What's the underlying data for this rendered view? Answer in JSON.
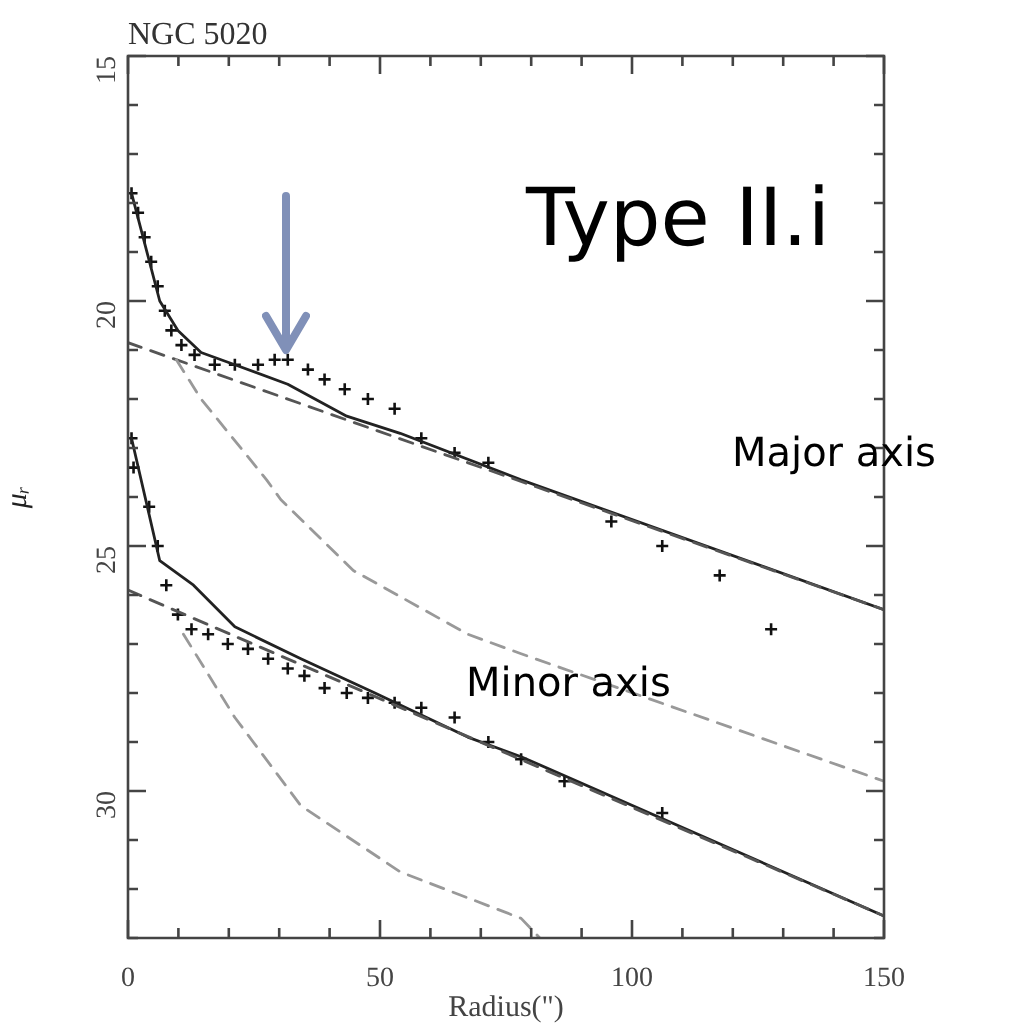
{
  "chart_data": {
    "type": "scatter",
    "title": "NGC 5020",
    "xlabel": "Radius(\")",
    "ylabel": "μᵣ",
    "xlim": [
      0,
      150
    ],
    "ylim": [
      33,
      15
    ],
    "xticks": [
      0,
      {
        "value": 10,
        "label": null
      },
      {
        "value": 20,
        "label": null
      },
      {
        "value": 30,
        "label": null
      },
      {
        "value": 40,
        "label": null
      },
      50,
      {
        "value": 60,
        "label": null
      },
      {
        "value": 70,
        "label": null
      },
      {
        "value": 80,
        "label": null
      },
      {
        "value": 90,
        "label": null
      },
      100,
      {
        "value": 110,
        "label": null
      },
      {
        "value": 120,
        "label": null
      },
      {
        "value": 130,
        "label": null
      },
      {
        "value": 140,
        "label": null
      },
      150
    ],
    "yticks": [
      15,
      {
        "value": 16,
        "label": null
      },
      {
        "value": 17,
        "label": null
      },
      {
        "value": 18,
        "label": null
      },
      {
        "value": 19,
        "label": null
      },
      20,
      {
        "value": 21,
        "label": null
      },
      {
        "value": 22,
        "label": null
      },
      {
        "value": 23,
        "label": null
      },
      {
        "value": 24,
        "label": null
      },
      25,
      {
        "value": 26,
        "label": null
      },
      {
        "value": 27,
        "label": null
      },
      {
        "value": 28,
        "label": null
      },
      {
        "value": 29,
        "label": null
      },
      30,
      {
        "value": 31,
        "label": null
      },
      {
        "value": 32,
        "label": null
      },
      {
        "value": 33,
        "label": null
      }
    ],
    "grid": false,
    "legend": false,
    "series": [
      {
        "type": "line",
        "color": "#999999",
        "line_style": "dashed",
        "x": [
          9.6,
          14.5,
          27.5,
          30.3,
          44.7,
          67.4,
          78,
          150
        ],
        "values": [
          21.2,
          22.0,
          23.65,
          24.05,
          25.5,
          26.8,
          27.2,
          29.8
        ]
      },
      {
        "type": "line",
        "color": "#999999",
        "line_style": "dashed",
        "x": [
          11,
          21.2,
          34.3,
          54,
          78,
          81.7
        ],
        "values": [
          26.8,
          28.5,
          30.3,
          31.65,
          32.6,
          33
        ]
      },
      {
        "type": "line",
        "color": "#555555",
        "line_style": "dashed",
        "x": [
          0,
          150
        ],
        "values": [
          20.85,
          26.3
        ]
      },
      {
        "type": "line",
        "color": "#555555",
        "line_style": "dashed",
        "x": [
          0,
          150
        ],
        "values": [
          25.9,
          32.55
        ]
      },
      {
        "type": "line",
        "color": "#222222",
        "line_style": "solid",
        "x": [
          0.7,
          6.3,
          9.9,
          14.5,
          21.2,
          31.7,
          43.4,
          54,
          78,
          150
        ],
        "values": [
          17.8,
          20.0,
          20.6,
          21.05,
          21.3,
          21.7,
          22.35,
          22.7,
          23.65,
          26.3
        ]
      },
      {
        "type": "line",
        "color": "#222222",
        "line_style": "solid",
        "x": [
          0.7,
          6.3,
          13,
          21.2,
          34.3,
          49,
          67.4,
          78,
          150
        ],
        "values": [
          22.8,
          25.3,
          25.8,
          26.65,
          27.3,
          28.0,
          28.9,
          29.3,
          32.55
        ]
      },
      {
        "type": "scatter",
        "color": "#111111",
        "marker": "cross",
        "x": [
          0.7,
          2,
          3.3,
          4.6,
          5.9,
          7.3,
          8.6,
          10.6,
          13.2,
          17.2,
          21.2,
          25.8,
          29.1,
          31.7,
          35.7,
          39,
          43,
          47.6,
          52.9,
          58.2,
          64.8,
          71.5,
          95.9,
          106,
          117.4,
          127.6
        ],
        "values": [
          17.8,
          18.2,
          18.7,
          19.2,
          19.7,
          20.2,
          20.6,
          20.9,
          21.1,
          21.3,
          21.3,
          21.3,
          21.2,
          21.2,
          21.4,
          21.6,
          21.8,
          22.0,
          22.2,
          22.8,
          23.1,
          23.3,
          24.5,
          25.0,
          25.6,
          26.7
        ]
      },
      {
        "type": "scatter",
        "color": "#111111",
        "marker": "cross",
        "x": [
          0.7,
          1.1,
          4.2,
          5.9,
          7.6,
          9.9,
          12.6,
          15.9,
          19.8,
          23.8,
          27.8,
          31.7,
          35,
          39,
          43.4,
          47.6,
          52.9,
          58.2,
          64.8,
          71.5,
          78,
          86.6,
          106
        ],
        "values": [
          22.8,
          23.4,
          24.2,
          25.0,
          25.8,
          26.4,
          26.7,
          26.8,
          27.0,
          27.1,
          27.3,
          27.5,
          27.65,
          27.9,
          28.0,
          28.1,
          28.2,
          28.3,
          28.5,
          29.0,
          29.35,
          29.8,
          30.45
        ]
      }
    ],
    "annotations": [
      "Type II.i",
      "Major axis",
      "Minor axis"
    ]
  }
}
